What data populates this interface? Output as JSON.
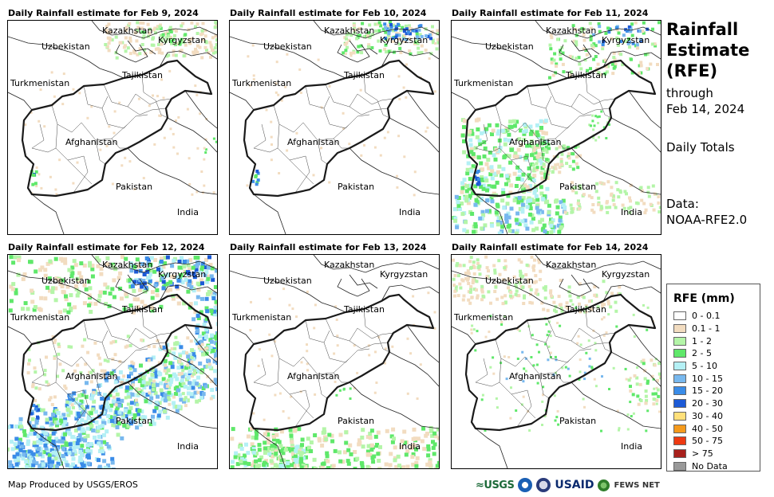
{
  "panels": [
    {
      "title": "Daily Rainfall estimate for Feb 9, 2024",
      "intensity": "light"
    },
    {
      "title": "Daily Rainfall estimate for Feb 10, 2024",
      "intensity": "light-north"
    },
    {
      "title": "Daily Rainfall estimate for Feb 11, 2024",
      "intensity": "west-south"
    },
    {
      "title": "Daily Rainfall estimate for Feb 12, 2024",
      "intensity": "heavy-south"
    },
    {
      "title": "Daily Rainfall estimate for Feb 13, 2024",
      "intensity": "south-light"
    },
    {
      "title": "Daily Rainfall estimate for Feb 14, 2024",
      "intensity": "scattered"
    }
  ],
  "map_labels": {
    "kazakhstan": "Kazakhstan",
    "kyrgyzstan": "Kyrgyzstan",
    "uzbekistan": "Uzbekistan",
    "tajikistan": "Tajikistan",
    "turkmenistan": "Turkmenistan",
    "afghanistan": "Afghanistan",
    "pakistan": "Pakistan",
    "india": "India"
  },
  "side": {
    "title_line1": "Rainfall",
    "title_line2": "Estimate",
    "title_line3": "(RFE)",
    "through": "through",
    "through_date": "Feb 14, 2024",
    "totals": "Daily Totals",
    "data_label": "Data:",
    "data_source": "NOAA-RFE2.0"
  },
  "legend": {
    "title": "RFE (mm)",
    "items": [
      {
        "label": "0 - 0.1",
        "color": "#ffffff"
      },
      {
        "label": "0.1 - 1",
        "color": "#f2dcc0"
      },
      {
        "label": "1 - 2",
        "color": "#b4f5a8"
      },
      {
        "label": "2 - 5",
        "color": "#5fe86a"
      },
      {
        "label": "5 - 10",
        "color": "#b4f0f5"
      },
      {
        "label": "10 - 15",
        "color": "#78b8ee"
      },
      {
        "label": "15 - 20",
        "color": "#3a8ce8"
      },
      {
        "label": "20 - 30",
        "color": "#1c5ad6"
      },
      {
        "label": "30 - 40",
        "color": "#ffe07a"
      },
      {
        "label": "40 - 50",
        "color": "#f59a1c"
      },
      {
        "label": "50 - 75",
        "color": "#ee3a12"
      },
      {
        "label": "> 75",
        "color": "#a8201c"
      },
      {
        "label": "No Data",
        "color": "#999999"
      }
    ]
  },
  "credit": "Map Produced by USGS/EROS",
  "logos": {
    "usgs": "≈USGS",
    "usaid": "USAID",
    "fews": "FEWS NET"
  }
}
